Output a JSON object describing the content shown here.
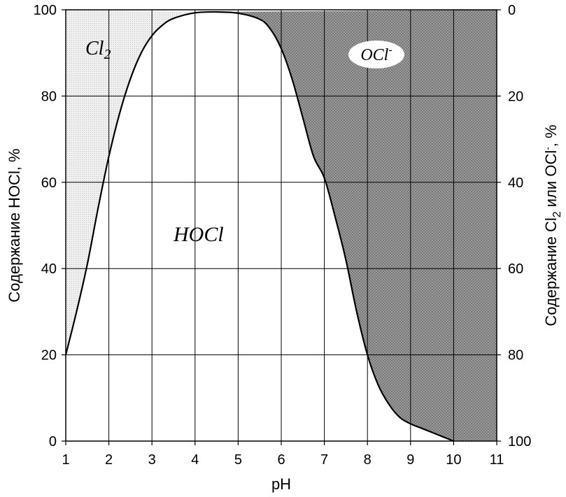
{
  "chart_data": {
    "type": "area",
    "xlabel": "pH",
    "ylabel_left": "Содержание HOCl, %",
    "ylabel_right_parts": [
      "Содержание Cl",
      "2",
      " или OCl",
      "-",
      ", %"
    ],
    "xlim": [
      1,
      11
    ],
    "ylim_left": [
      0,
      100
    ],
    "ylim_right": [
      100,
      0
    ],
    "x_ticks": [
      1,
      2,
      3,
      4,
      5,
      6,
      7,
      8,
      9,
      10,
      11
    ],
    "y_ticks_left": [
      0,
      20,
      40,
      60,
      80,
      100
    ],
    "y_ticks_right": [
      100,
      80,
      60,
      40,
      20,
      0
    ],
    "grid": true,
    "series": [
      {
        "name": "HOCl",
        "x": [
          1,
          1.25,
          1.5,
          1.75,
          2,
          2.25,
          2.5,
          2.75,
          3,
          3.25,
          3.5,
          4,
          4.5,
          5,
          5.5,
          5.75,
          6,
          6.25,
          6.5,
          6.75,
          7,
          7.25,
          7.5,
          7.75,
          8,
          8.25,
          8.5,
          8.75,
          9,
          9.25,
          9.5,
          9.75,
          10
        ],
        "y": [
          20,
          30,
          41,
          54,
          66,
          76,
          84,
          90,
          94,
          96.5,
          98,
          99.3,
          99.5,
          99.2,
          97.8,
          95.5,
          91,
          84,
          75,
          66,
          61,
          52,
          42,
          30,
          20,
          13,
          8.5,
          5.5,
          4,
          3,
          2,
          1,
          0
        ]
      }
    ],
    "regions": [
      {
        "label": "Cl",
        "subscript": "2",
        "fill": "#e6e6e6",
        "pattern": "light-dots"
      },
      {
        "label": "HOCl",
        "fill": "#ffffff"
      },
      {
        "label": "OCl",
        "superscript": "-",
        "fill": "#999999",
        "pattern": "dark-crosshatch"
      }
    ],
    "colors": {
      "curve": "#000000",
      "grid": "#000000",
      "cl2_region": "#e6e6e6",
      "ocl_region": "#999999"
    }
  }
}
